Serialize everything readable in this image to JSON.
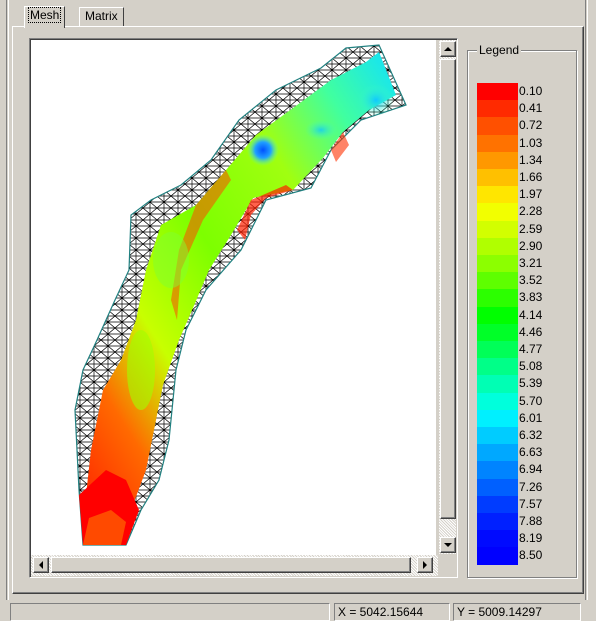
{
  "tabs": [
    {
      "label": "Mesh",
      "active": true
    },
    {
      "label": "Matrix",
      "active": false
    }
  ],
  "legend": {
    "title": "Legend",
    "values": [
      "0.10",
      "0.41",
      "0.72",
      "1.03",
      "1.34",
      "1.66",
      "1.97",
      "2.28",
      "2.59",
      "2.90",
      "3.21",
      "3.52",
      "3.83",
      "4.14",
      "4.46",
      "4.77",
      "5.08",
      "5.39",
      "5.70",
      "6.01",
      "6.32",
      "6.63",
      "6.94",
      "7.26",
      "7.57",
      "7.88",
      "8.19",
      "8.50"
    ],
    "colors": [
      "#ff0000",
      "#ff2a00",
      "#ff5000",
      "#ff7200",
      "#ff9800",
      "#ffc000",
      "#ffe600",
      "#f2ff00",
      "#d2ff00",
      "#b0ff00",
      "#8cff00",
      "#5eff00",
      "#2cff00",
      "#00ff00",
      "#00ff28",
      "#00ff58",
      "#00ff88",
      "#00ffb4",
      "#00ffdc",
      "#00f0ff",
      "#00ccff",
      "#00a8ff",
      "#0084ff",
      "#0060ff",
      "#003cff",
      "#0020ff",
      "#000aff",
      "#0000ff"
    ]
  },
  "status": {
    "x": "X = 5042.15644",
    "y": "Y = 5009.14297"
  },
  "icons": {
    "scroll_up": "arrow-up-icon",
    "scroll_down": "arrow-down-icon",
    "scroll_left": "arrow-left-icon",
    "scroll_right": "arrow-right-icon"
  }
}
